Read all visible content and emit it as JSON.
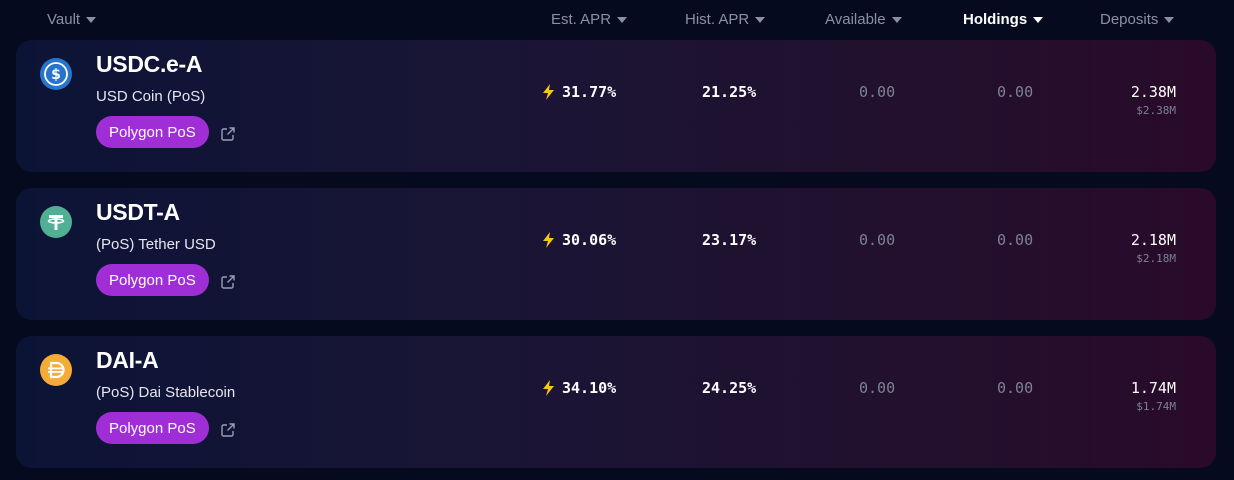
{
  "header": {
    "columns": [
      {
        "label": "Vault"
      },
      {
        "label": "Est. APR"
      },
      {
        "label": "Hist. APR"
      },
      {
        "label": "Available"
      },
      {
        "label": "Holdings"
      },
      {
        "label": "Deposits"
      }
    ]
  },
  "vaults": [
    {
      "name": "USDC.e-A",
      "subtitle": "USD Coin (PoS)",
      "chain": "Polygon PoS",
      "icon": "usdc-icon",
      "icon_color": "#2775ca",
      "est_apr": "31.77%",
      "hist_apr": "21.25%",
      "available": "0.00",
      "holdings": "0.00",
      "deposits": "2.38M",
      "deposits_usd": "$2.38M"
    },
    {
      "name": "USDT-A",
      "subtitle": "(PoS) Tether USD",
      "chain": "Polygon PoS",
      "icon": "usdt-icon",
      "icon_color": "#50af95",
      "est_apr": "30.06%",
      "hist_apr": "23.17%",
      "available": "0.00",
      "holdings": "0.00",
      "deposits": "2.18M",
      "deposits_usd": "$2.18M"
    },
    {
      "name": "DAI-A",
      "subtitle": "(PoS) Dai Stablecoin",
      "chain": "Polygon PoS",
      "icon": "dai-icon",
      "icon_color": "#f5ac37",
      "est_apr": "34.10%",
      "hist_apr": "24.25%",
      "available": "0.00",
      "holdings": "0.00",
      "deposits": "1.74M",
      "deposits_usd": "$1.74M"
    }
  ],
  "colors": {
    "chain_pill": "#a02ed6",
    "bolt": "#f5c518",
    "muted": "#7c8196"
  }
}
